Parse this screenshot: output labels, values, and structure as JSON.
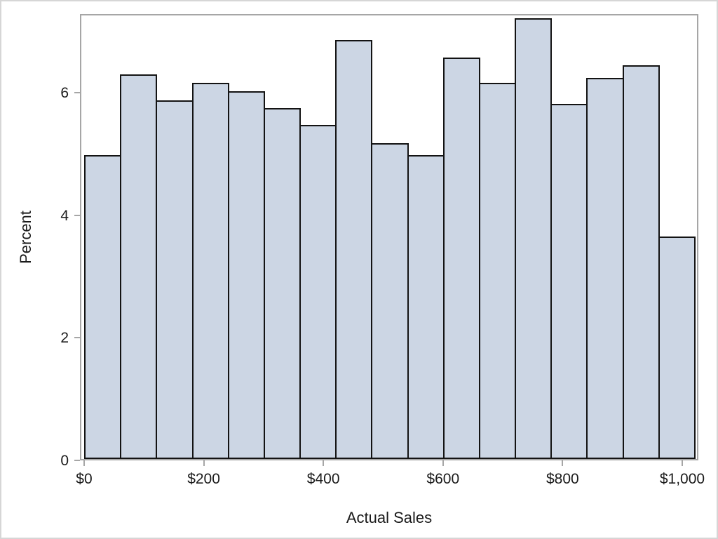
{
  "figure": {
    "background": "#ffffff",
    "border_color": "#d6d6d6"
  },
  "chart_data": {
    "type": "bar",
    "subtype": "histogram",
    "title": "",
    "xlabel": "Actual Sales",
    "ylabel": "Percent",
    "bar_fill": "#ccd6e4",
    "bar_stroke": "#131313",
    "axis_color": "#a6a6a6",
    "text_color": "#1b1b1b",
    "grid": false,
    "legend": null,
    "bins": {
      "start": 0,
      "width": 60,
      "count": 17
    },
    "values_percent": [
      5.0,
      6.32,
      5.9,
      6.18,
      6.04,
      5.77,
      5.49,
      6.88,
      5.2,
      5.0,
      6.59,
      6.18,
      7.23,
      5.84,
      6.26,
      6.47,
      3.67
    ],
    "x_tick_values": [
      0,
      200,
      400,
      600,
      800,
      1000
    ],
    "x_tick_labels": [
      "$0",
      "$200",
      "$400",
      "$600",
      "$800",
      "$1,000"
    ],
    "y_tick_values": [
      0,
      2,
      4,
      6
    ],
    "y_tick_labels": [
      "0",
      "2",
      "4",
      "6"
    ],
    "xlim": [
      -7,
      1027
    ],
    "ylim": [
      0,
      7.28
    ]
  }
}
